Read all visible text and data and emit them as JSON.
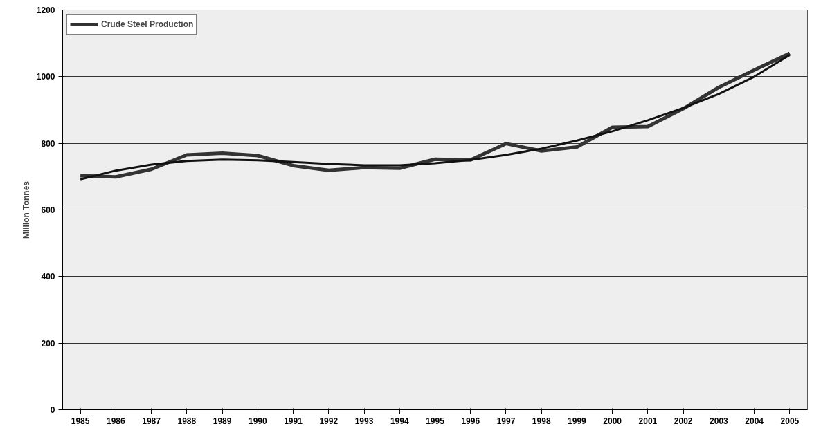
{
  "chart_data": {
    "type": "line",
    "ylabel": "Million Tonnes",
    "categories": [
      "1985",
      "1986",
      "1987",
      "1988",
      "1989",
      "1990",
      "1991",
      "1992",
      "1993",
      "1994",
      "1995",
      "1996",
      "1997",
      "1998",
      "1999",
      "2000",
      "2001",
      "2002",
      "2003",
      "2004",
      "2005"
    ],
    "series": [
      {
        "name": "Crude Steel Production",
        "color": "#333333",
        "values": [
          703,
          699,
          722,
          765,
          770,
          763,
          733,
          719,
          727,
          725,
          752,
          750,
          799,
          777,
          789,
          848,
          850,
          904,
          968,
          1020,
          1070
        ]
      },
      {
        "color": "#111111",
        "values": [
          692,
          718,
          736,
          747,
          751,
          749,
          744,
          738,
          734,
          734,
          740,
          750,
          765,
          784,
          808,
          836,
          869,
          906,
          948,
          1000,
          1065
        ]
      }
    ],
    "ylim": [
      0,
      1200
    ],
    "yticks": [
      0,
      200,
      400,
      600,
      800,
      1000,
      1200
    ],
    "grid": "y",
    "legend": "top left"
  }
}
